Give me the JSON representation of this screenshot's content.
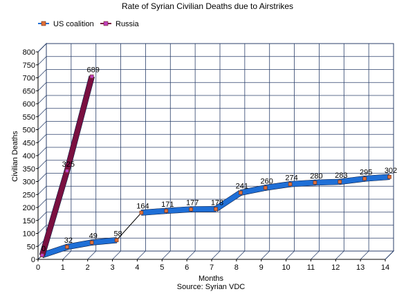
{
  "chart_data": {
    "type": "line",
    "title": "Rate of Syrian Civilian Deaths due to Airstrikes",
    "xlabel": "Months",
    "source": "Source: Syrian VDC",
    "ylabel": "Civilian Deaths",
    "xlim": [
      0,
      14
    ],
    "ylim": [
      0,
      800
    ],
    "x_ticks": [
      0,
      1,
      2,
      3,
      4,
      5,
      6,
      7,
      8,
      9,
      10,
      11,
      12,
      13,
      14
    ],
    "y_ticks": [
      0,
      50,
      100,
      150,
      200,
      250,
      300,
      350,
      400,
      450,
      500,
      550,
      600,
      650,
      700,
      750,
      800
    ],
    "grid": true,
    "legend_position": "top-left",
    "style": "3d-ribbon",
    "series": [
      {
        "name": "US coalition",
        "color": "#1f6fd6",
        "marker_color": "#e0703a",
        "points": [
          {
            "x": 0,
            "y": 0,
            "label": "0"
          },
          {
            "x": 1,
            "y": 32,
            "label": "32"
          },
          {
            "x": 2,
            "y": 49,
            "label": "49"
          },
          {
            "x": 3,
            "y": 58,
            "label": "58"
          },
          {
            "x": 4,
            "y": 164,
            "label": "164"
          },
          {
            "x": 5,
            "y": 171,
            "label": "171"
          },
          {
            "x": 6,
            "y": 177,
            "label": "177"
          },
          {
            "x": 7,
            "y": 178,
            "label": "178"
          },
          {
            "x": 8,
            "y": 241,
            "label": "241"
          },
          {
            "x": 9,
            "y": 260,
            "label": "260"
          },
          {
            "x": 10,
            "y": 274,
            "label": "274"
          },
          {
            "x": 11,
            "y": 280,
            "label": "280"
          },
          {
            "x": 12,
            "y": 283,
            "label": "283"
          },
          {
            "x": 13,
            "y": 295,
            "label": "295"
          },
          {
            "x": 14,
            "y": 302,
            "label": "302"
          }
        ]
      },
      {
        "name": "Russia",
        "color": "#7a1040",
        "marker_color": "#c040c0",
        "points": [
          {
            "x": 0,
            "y": 0,
            "label": "0"
          },
          {
            "x": 1,
            "y": 325,
            "label": "325"
          },
          {
            "x": 2,
            "y": 689,
            "label": "689"
          }
        ]
      }
    ]
  }
}
